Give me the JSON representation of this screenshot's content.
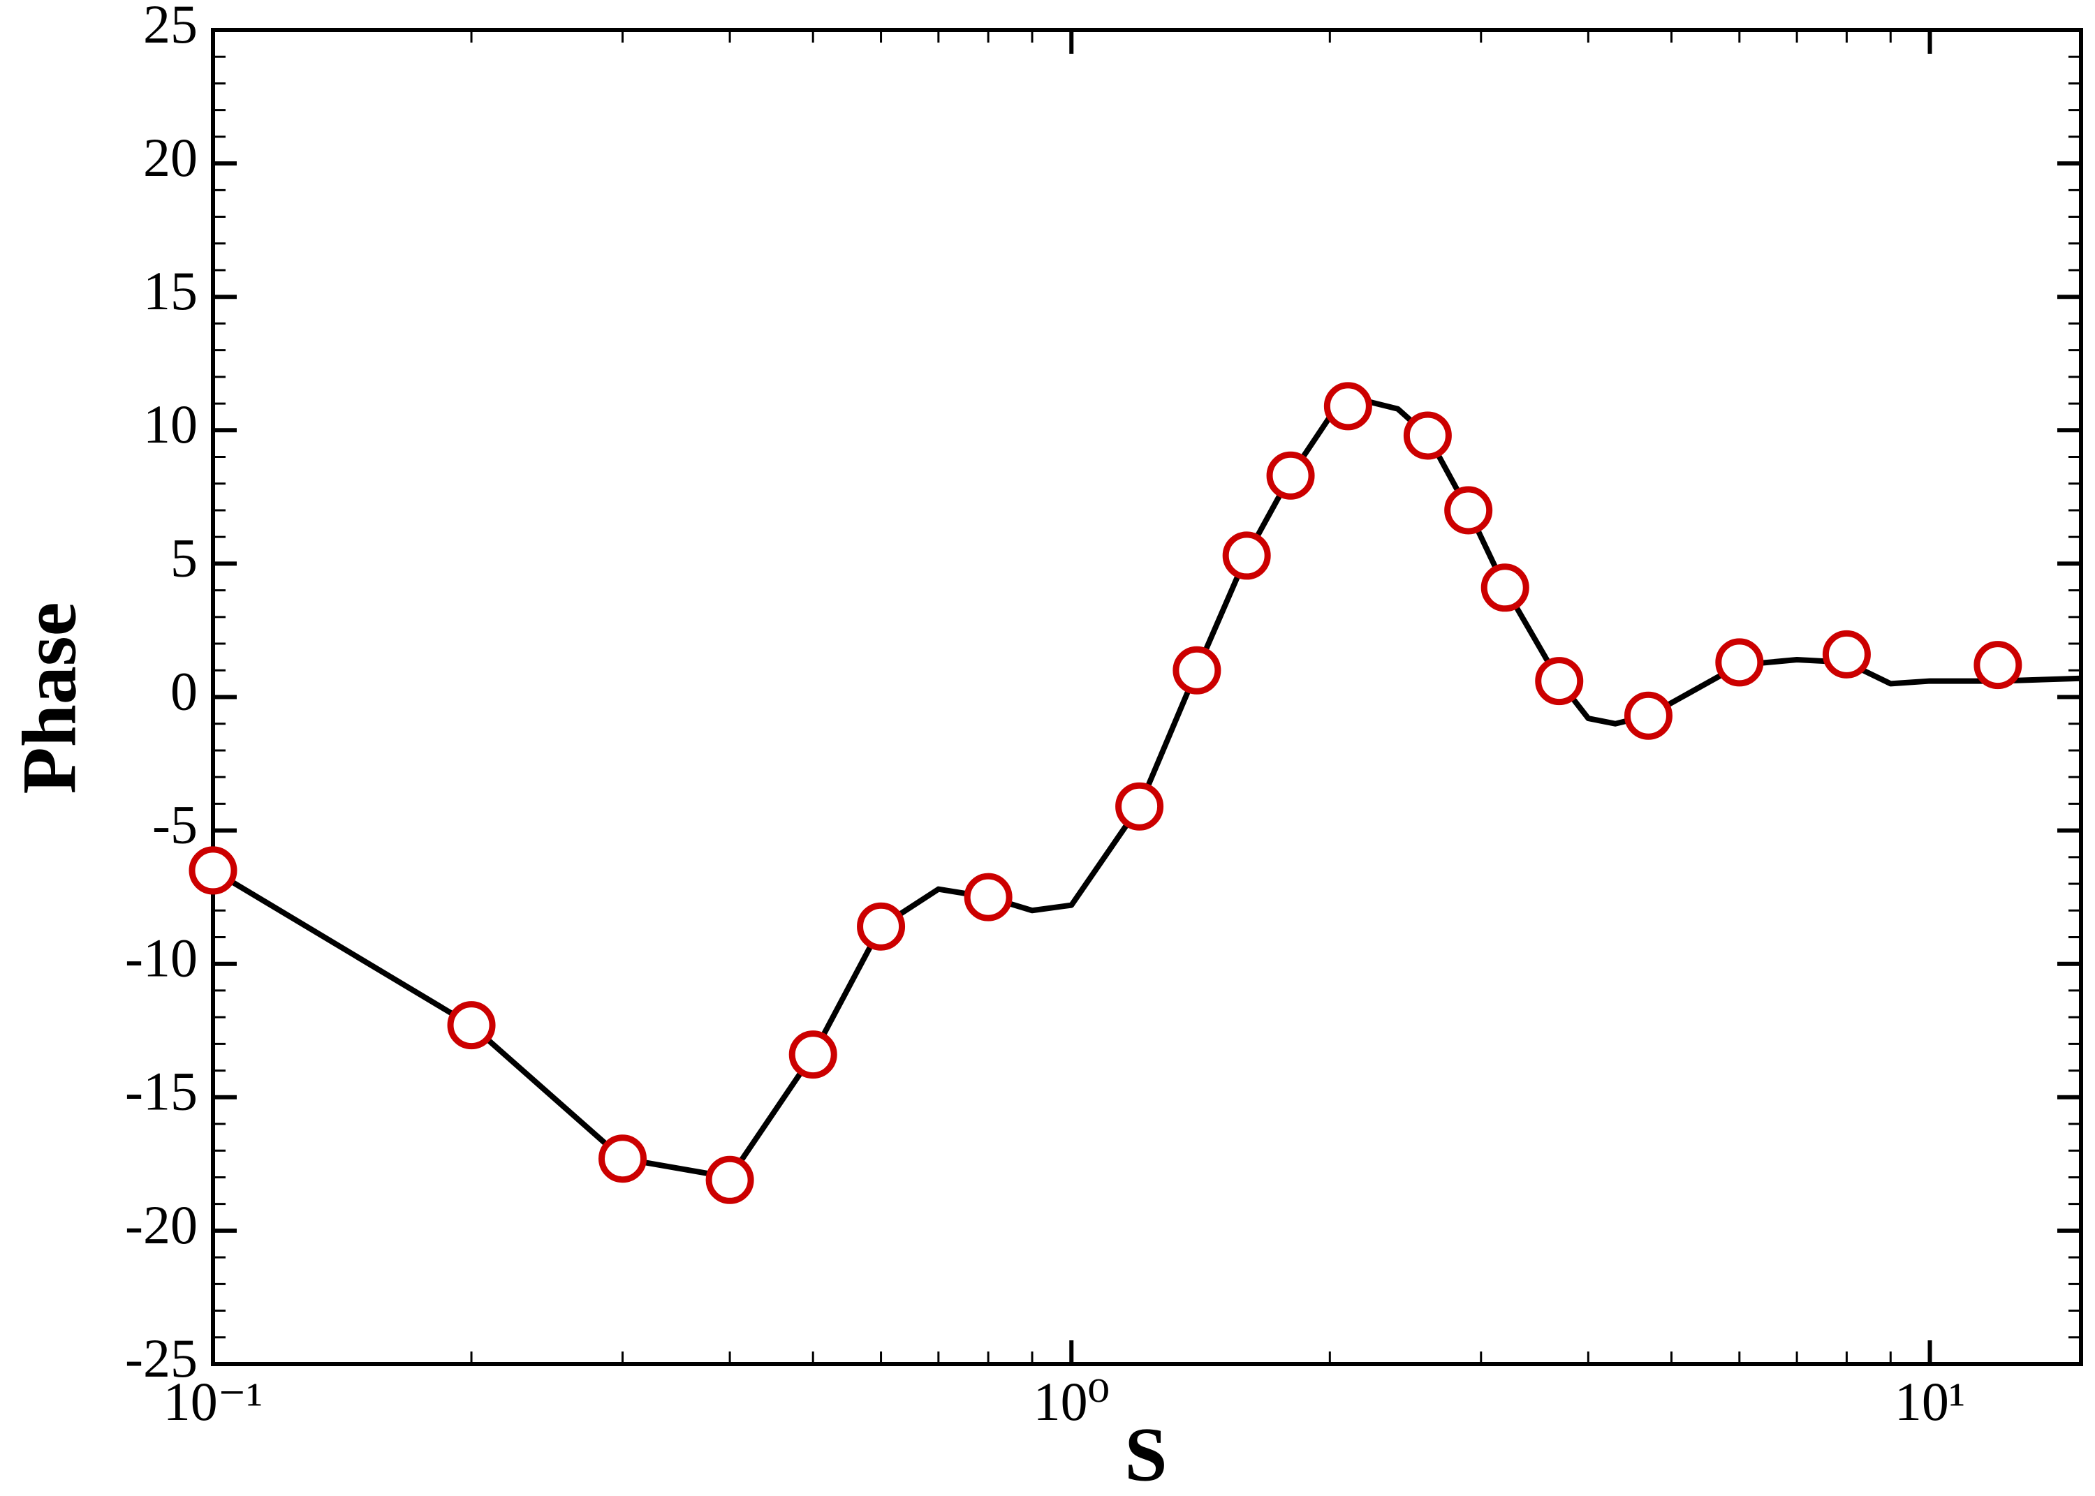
{
  "chart_data": {
    "type": "line",
    "x_label": "S",
    "y_label": "Phase",
    "xscale": "log",
    "xlim": [
      0.1,
      15
    ],
    "ylim": [
      -25,
      25
    ],
    "xticks": [
      {
        "value": 0.1,
        "label": "10⁻¹"
      },
      {
        "value": 1,
        "label": "10⁰"
      },
      {
        "value": 10,
        "label": "10¹"
      }
    ],
    "yticks": [
      -25,
      -20,
      -15,
      -10,
      -5,
      0,
      5,
      10,
      15,
      20,
      25
    ],
    "series": [
      {
        "mode": "line",
        "color": "#000000",
        "x": [
          0.1,
          0.2,
          0.3,
          0.4,
          0.5,
          0.6,
          0.7,
          0.8,
          0.9,
          1.0,
          1.2,
          1.4,
          1.6,
          1.8,
          2.0,
          2.2,
          2.4,
          2.6,
          2.9,
          3.2,
          3.7,
          4.0,
          4.3,
          4.7,
          6,
          7,
          8,
          9,
          10,
          12,
          15
        ],
        "values": [
          -6.5,
          -12.3,
          -17.3,
          -18.0,
          -13.4,
          -8.6,
          -7.2,
          -7.5,
          -8.0,
          -7.8,
          -4.1,
          1.0,
          5.3,
          8.3,
          10.5,
          11.1,
          10.8,
          9.8,
          7.0,
          4.1,
          0.6,
          -0.8,
          -1.0,
          -0.7,
          1.2,
          1.4,
          1.3,
          0.5,
          0.6,
          0.6,
          0.7
        ]
      },
      {
        "mode": "markers",
        "color": "#cc0000",
        "x": [
          0.1,
          0.2,
          0.3,
          0.4,
          0.5,
          0.6,
          0.8,
          1.2,
          1.4,
          1.6,
          1.8,
          2.1,
          2.6,
          2.9,
          3.2,
          3.7,
          4.7,
          6,
          8,
          12
        ],
        "values": [
          -6.5,
          -12.3,
          -17.3,
          -18.1,
          -13.4,
          -8.6,
          -7.5,
          -4.1,
          1.0,
          5.3,
          8.3,
          10.9,
          9.8,
          7.0,
          4.1,
          0.6,
          -0.7,
          1.3,
          1.6,
          1.2
        ]
      }
    ]
  }
}
